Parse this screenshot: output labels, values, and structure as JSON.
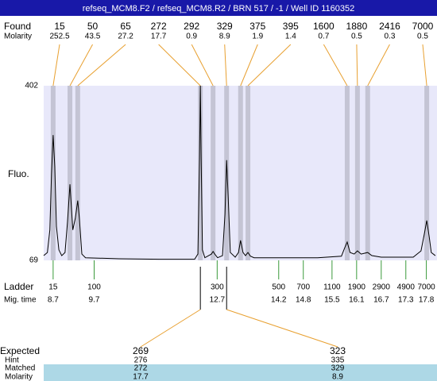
{
  "title": "refseq_MCM8.F2 / refseq_MCM8.R2 / BRN 517 / -1 / Well ID 1160352",
  "chart_data": {
    "type": "line",
    "ylabel": "Fluo.",
    "color": "#000000",
    "ylim": [
      69,
      402
    ],
    "yticks": [
      69,
      402
    ],
    "xlim": [
      8.47,
      18.06
    ],
    "x": [
      8.47,
      8.56,
      8.62,
      8.66,
      8.7,
      8.74,
      8.78,
      8.84,
      8.91,
      8.99,
      9.05,
      9.11,
      9.15,
      9.18,
      9.24,
      9.3,
      9.34,
      9.4,
      9.49,
      10.31,
      11.28,
      12.15,
      12.23,
      12.27,
      12.29,
      12.31,
      12.34,
      12.4,
      12.56,
      12.6,
      12.64,
      12.71,
      12.83,
      12.89,
      12.93,
      12.97,
      13.02,
      13.14,
      13.22,
      13.27,
      13.33,
      13.39,
      13.45,
      13.51,
      13.6,
      15.15,
      15.73,
      15.81,
      15.87,
      15.94,
      16.04,
      16.12,
      16.21,
      16.37,
      16.47,
      16.7,
      17.48,
      17.67,
      17.75,
      17.81,
      17.87,
      17.92,
      18.02
    ],
    "values": [
      78,
      84,
      127,
      233,
      308,
      248,
      134,
      89,
      78,
      84,
      142,
      214,
      164,
      127,
      149,
      183,
      149,
      81,
      74,
      72,
      71,
      71,
      81,
      263,
      402,
      263,
      89,
      74,
      81,
      86,
      81,
      74,
      78,
      157,
      260,
      187,
      84,
      75,
      84,
      107,
      84,
      78,
      84,
      77,
      74,
      74,
      77,
      93,
      104,
      84,
      81,
      87,
      81,
      84,
      78,
      75,
      75,
      87,
      119,
      145,
      114,
      84,
      78
    ]
  },
  "found": {
    "label": "Found",
    "sublabel": "Molarity",
    "color": "#e8a030",
    "peaks": [
      {
        "size": 15,
        "molarity": 252.5,
        "time": 8.7
      },
      {
        "size": 50,
        "molarity": 43.5,
        "time": 9.11
      },
      {
        "size": 65,
        "molarity": 27.2,
        "time": 9.3
      },
      {
        "size": 272,
        "molarity": 17.7,
        "time": 12.29
      },
      {
        "size": 292,
        "molarity": 0.9,
        "time": 12.6
      },
      {
        "size": 329,
        "molarity": 8.9,
        "time": 12.93
      },
      {
        "size": 375,
        "molarity": 1.9,
        "time": 13.27
      },
      {
        "size": 395,
        "molarity": 1.4,
        "time": 13.45
      },
      {
        "size": 1600,
        "molarity": 0.7,
        "time": 15.87
      },
      {
        "size": 1880,
        "molarity": 0.5,
        "time": 16.12
      },
      {
        "size": 2416,
        "molarity": 0.3,
        "time": 16.37
      },
      {
        "size": 7000,
        "molarity": 0.5,
        "time": 17.81
      }
    ]
  },
  "ladder": {
    "label": "Ladder",
    "sublabel": "Mig. time",
    "color": "#3a9a3a",
    "points": [
      {
        "size": 15,
        "time": 8.7
      },
      {
        "size": 100,
        "time": 9.7
      },
      {
        "size": 300,
        "time": 12.7
      },
      {
        "size": 500,
        "time": 14.2
      },
      {
        "size": 700,
        "time": 14.8
      },
      {
        "size": 1100,
        "time": 15.5
      },
      {
        "size": 1900,
        "time": 16.1
      },
      {
        "size": 2900,
        "time": 16.7
      },
      {
        "size": 4900,
        "time": 17.3
      },
      {
        "size": 7000,
        "time": 17.8
      }
    ]
  },
  "expected": {
    "labels": [
      "Expected",
      "Hint",
      "Matched",
      "Molarity"
    ],
    "columns": [
      {
        "expected": 269,
        "hint": 276,
        "matched": 272,
        "molarity": 17.7
      },
      {
        "expected": 323,
        "hint": 335,
        "matched": 329,
        "molarity": 8.9
      }
    ]
  }
}
